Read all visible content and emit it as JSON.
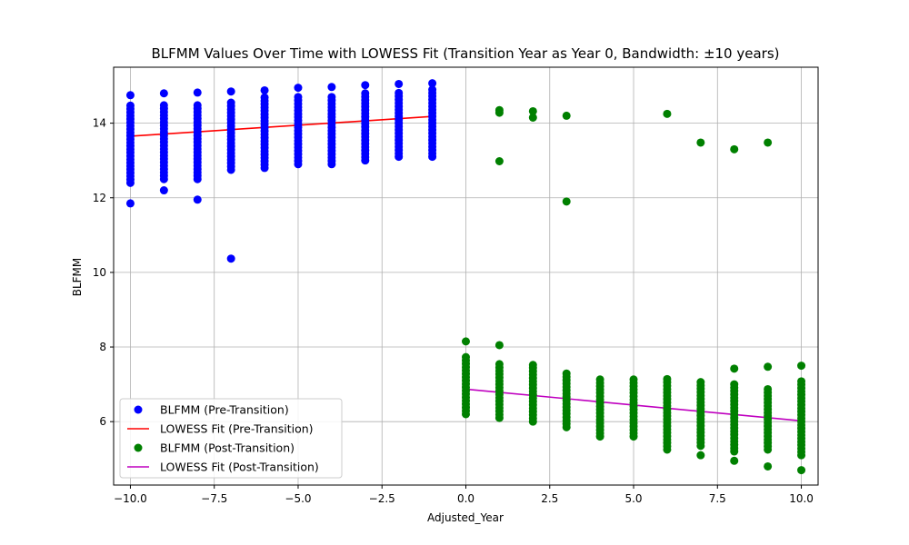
{
  "chart_data": {
    "type": "scatter",
    "title": "BLFMM Values Over Time with LOWESS Fit (Transition Year as Year 0, Bandwidth: ±10 years)",
    "xlabel": "Adjusted_Year",
    "ylabel": "BLFMM",
    "xlim": [
      -10.5,
      10.5
    ],
    "ylim": [
      4.3,
      15.5
    ],
    "xticks": [
      -10.0,
      -7.5,
      -5.0,
      -2.5,
      0.0,
      2.5,
      5.0,
      7.5,
      10.0
    ],
    "xtick_labels": [
      "−10.0",
      "−7.5",
      "−5.0",
      "−2.5",
      "0.0",
      "2.5",
      "5.0",
      "7.5",
      "10.0"
    ],
    "yticks": [
      6,
      8,
      10,
      12,
      14
    ],
    "ytick_labels": [
      "6",
      "8",
      "10",
      "12",
      "14"
    ],
    "grid": true,
    "legend_position": "lower-left",
    "colors": {
      "pre_scatter": "#0000ff",
      "pre_fit": "#ff0000",
      "post_scatter": "#008000",
      "post_fit": "#bf00bf"
    },
    "series": [
      {
        "name": "BLFMM (Pre-Transition)",
        "kind": "scatter",
        "color": "#0000ff",
        "ranges": [
          {
            "x": -10,
            "min": 12.4,
            "max": 14.5
          },
          {
            "x": -9,
            "min": 12.5,
            "max": 14.5
          },
          {
            "x": -8,
            "min": 12.5,
            "max": 14.5
          },
          {
            "x": -7,
            "min": 12.75,
            "max": 14.6
          },
          {
            "x": -6,
            "min": 12.8,
            "max": 14.7
          },
          {
            "x": -5,
            "min": 12.9,
            "max": 14.75
          },
          {
            "x": -4,
            "min": 12.9,
            "max": 14.75
          },
          {
            "x": -3,
            "min": 13.0,
            "max": 14.8
          },
          {
            "x": -2,
            "min": 13.1,
            "max": 14.85
          },
          {
            "x": -1,
            "min": 13.1,
            "max": 14.9
          }
        ],
        "outliers": [
          {
            "x": -10,
            "y": 14.75
          },
          {
            "x": -10,
            "y": 11.85
          },
          {
            "x": -9,
            "y": 14.8
          },
          {
            "x": -9,
            "y": 12.2
          },
          {
            "x": -8,
            "y": 14.82
          },
          {
            "x": -8,
            "y": 11.95
          },
          {
            "x": -7,
            "y": 14.85
          },
          {
            "x": -7,
            "y": 10.37
          },
          {
            "x": -6,
            "y": 14.88
          },
          {
            "x": -5,
            "y": 14.95
          },
          {
            "x": -4,
            "y": 14.97
          },
          {
            "x": -3,
            "y": 15.02
          },
          {
            "x": -2,
            "y": 15.05
          },
          {
            "x": -1,
            "y": 15.07
          }
        ]
      },
      {
        "name": "LOWESS Fit (Pre-Transition)",
        "kind": "line",
        "color": "#ff0000",
        "x": [
          -10,
          -1
        ],
        "y": [
          13.65,
          14.18
        ]
      },
      {
        "name": "BLFMM (Post-Transition)",
        "kind": "scatter",
        "color": "#008000",
        "ranges": [
          {
            "x": 0,
            "min": 6.2,
            "max": 7.8
          },
          {
            "x": 1,
            "min": 6.1,
            "max": 7.6
          },
          {
            "x": 2,
            "min": 6.0,
            "max": 7.5
          },
          {
            "x": 3,
            "min": 5.85,
            "max": 7.3
          },
          {
            "x": 4,
            "min": 5.6,
            "max": 7.2
          },
          {
            "x": 5,
            "min": 5.6,
            "max": 7.15
          },
          {
            "x": 6,
            "min": 5.25,
            "max": 7.2
          },
          {
            "x": 7,
            "min": 5.35,
            "max": 7.1
          },
          {
            "x": 8,
            "min": 5.2,
            "max": 7.0
          },
          {
            "x": 9,
            "min": 5.25,
            "max": 6.95
          },
          {
            "x": 10,
            "min": 5.1,
            "max": 7.1
          }
        ],
        "outliers": [
          {
            "x": 0,
            "y": 8.15
          },
          {
            "x": 1,
            "y": 14.35
          },
          {
            "x": 1,
            "y": 14.28
          },
          {
            "x": 1,
            "y": 12.98
          },
          {
            "x": 1,
            "y": 8.05
          },
          {
            "x": 2,
            "y": 14.32
          },
          {
            "x": 2,
            "y": 14.15
          },
          {
            "x": 2,
            "y": 7.52
          },
          {
            "x": 3,
            "y": 14.2
          },
          {
            "x": 3,
            "y": 11.9
          },
          {
            "x": 6,
            "y": 14.25
          },
          {
            "x": 7,
            "y": 13.48
          },
          {
            "x": 7,
            "y": 5.1
          },
          {
            "x": 8,
            "y": 13.3
          },
          {
            "x": 8,
            "y": 7.42
          },
          {
            "x": 8,
            "y": 4.95
          },
          {
            "x": 9,
            "y": 13.48
          },
          {
            "x": 9,
            "y": 7.47
          },
          {
            "x": 9,
            "y": 4.8
          },
          {
            "x": 10,
            "y": 7.5
          },
          {
            "x": 10,
            "y": 4.7
          }
        ]
      },
      {
        "name": "LOWESS Fit (Post-Transition)",
        "kind": "line",
        "color": "#bf00bf",
        "x": [
          0,
          10
        ],
        "y": [
          6.87,
          6.02
        ]
      }
    ]
  }
}
